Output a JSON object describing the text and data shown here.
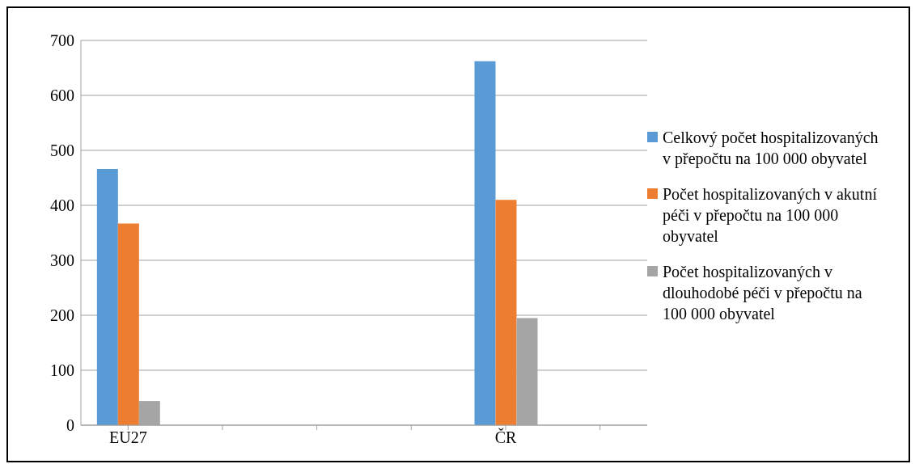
{
  "chart_data": {
    "type": "bar",
    "categories": [
      "EU27",
      null,
      null,
      null,
      "ČR",
      null
    ],
    "series": [
      {
        "name": "Celkový počet hospitalizovaných v přepočtu na 100 000 obyvatel",
        "color": "#5b9bd5",
        "values": [
          466,
          null,
          null,
          null,
          662,
          null
        ]
      },
      {
        "name": "Počet hospitalizovaných v akutní péči v přepočtu na 100 000 obyvatel",
        "color": "#ed7d31",
        "values": [
          367,
          null,
          null,
          null,
          410,
          null
        ]
      },
      {
        "name": "Počet hospitalizovaných v dlouhodobé péči v přepočtu na 100 000 obyvatel",
        "color": "#a5a5a5",
        "values": [
          44,
          null,
          null,
          null,
          195,
          null
        ]
      }
    ],
    "ylim": [
      0,
      700
    ],
    "yticks": [
      0,
      100,
      200,
      300,
      400,
      500,
      600,
      700
    ],
    "grid": "y",
    "legend": "right"
  }
}
